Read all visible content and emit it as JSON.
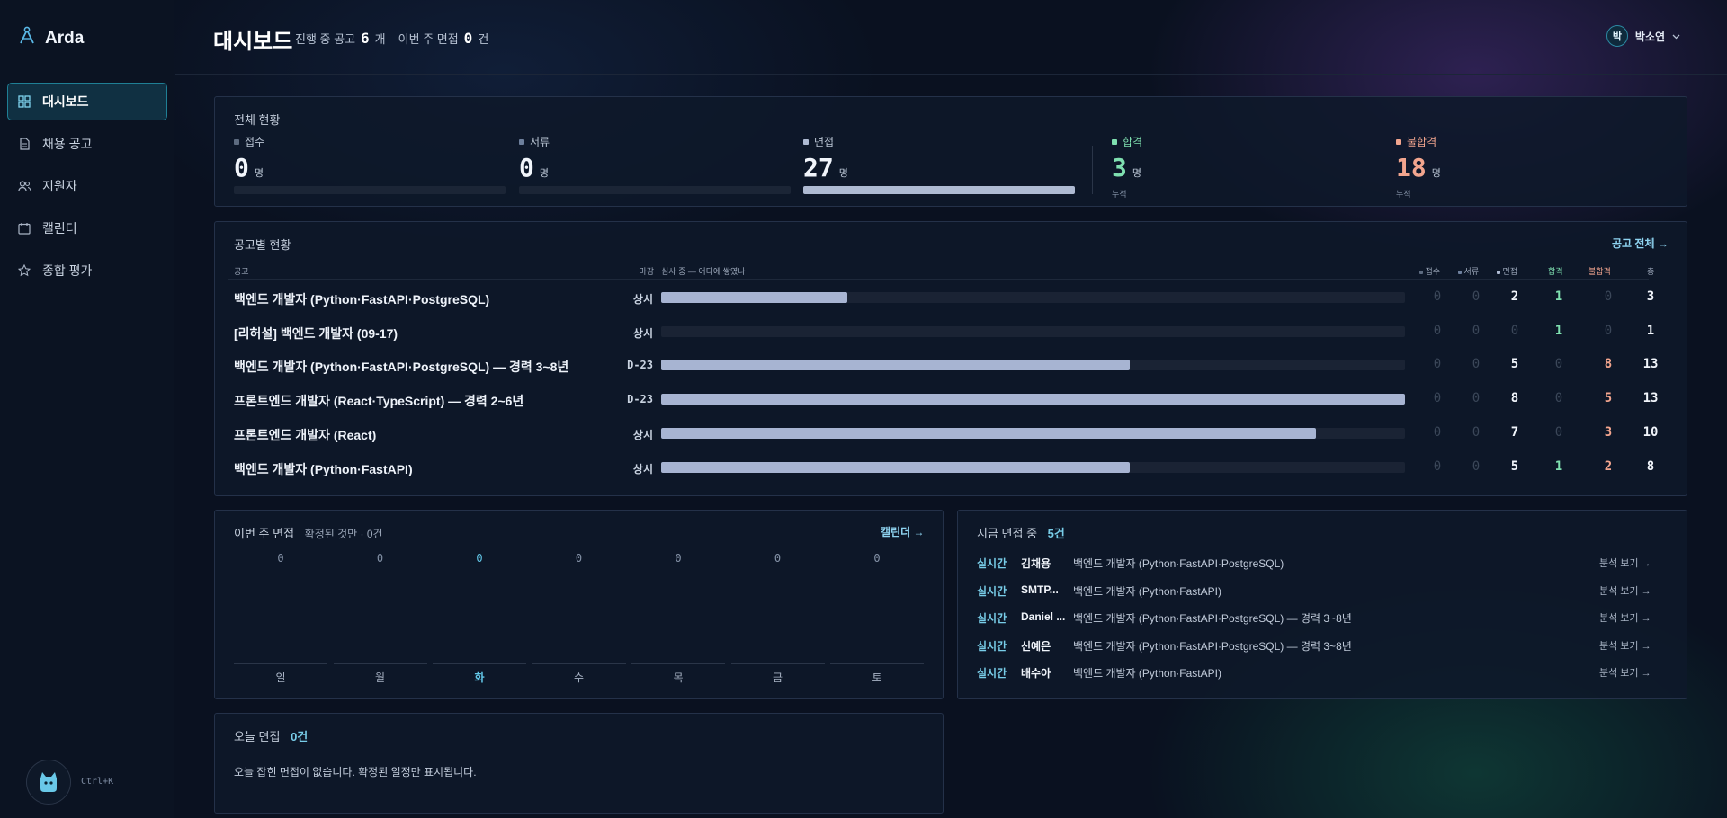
{
  "app": {
    "name": "Arda"
  },
  "sidebar": {
    "items": [
      {
        "label": "대시보드",
        "icon": "dashboard-icon"
      },
      {
        "label": "채용 공고",
        "icon": "document-icon"
      },
      {
        "label": "지원자",
        "icon": "users-icon"
      },
      {
        "label": "캘린더",
        "icon": "calendar-icon"
      },
      {
        "label": "종합 평가",
        "icon": "star-icon"
      }
    ],
    "shortcut": "Ctrl+K"
  },
  "header": {
    "title": "대시보드",
    "open_postings_label": "진행 중 공고",
    "open_postings_count": "6",
    "open_postings_unit": "개",
    "week_interviews_label": "이번 주 면접",
    "week_interviews_count": "0",
    "week_interviews_unit": "건",
    "user_initial": "박",
    "user_name": "박소연"
  },
  "summary": {
    "title": "전체 현황",
    "unit": "명",
    "note": "누적",
    "items": [
      {
        "label": "접수",
        "value": "0",
        "fill": 0.0,
        "color": "#5d6b80"
      },
      {
        "label": "서류",
        "value": "0",
        "fill": 0.0,
        "color": "#6d7f9c"
      },
      {
        "label": "면접",
        "value": "27",
        "fill": 1.0,
        "color": "#aebad2"
      },
      {
        "label": "합격",
        "value": "3",
        "color": "#7fe0b0"
      },
      {
        "label": "불합격",
        "value": "18",
        "color": "#f2a58e"
      }
    ]
  },
  "jobs": {
    "title": "공고별 현황",
    "all_link": "공고 전체 →",
    "columns": {
      "job": "공고",
      "deadline": "마감",
      "progress": "심사 중 — 어디에 쌓였나",
      "applied": "접수",
      "document": "서류",
      "interview": "면접",
      "pass": "합격",
      "fail": "불합격",
      "total": "총"
    },
    "rows": [
      {
        "name": "백엔드 개발자 (Python·FastAPI·PostgreSQL)",
        "deadline": "상시",
        "progress": 0.25,
        "applied": "0",
        "document": "0",
        "interview": "2",
        "pass": "1",
        "fail": "0",
        "total": "3"
      },
      {
        "name": "[리허설] 백엔드 개발자 (09-17)",
        "deadline": "상시",
        "progress": 0.0,
        "applied": "0",
        "document": "0",
        "interview": "0",
        "pass": "1",
        "fail": "0",
        "total": "1"
      },
      {
        "name": "백엔드 개발자 (Python·FastAPI·PostgreSQL) — 경력 3~8년",
        "deadline": "D-23",
        "progress": 0.63,
        "applied": "0",
        "document": "0",
        "interview": "5",
        "pass": "0",
        "fail": "8",
        "total": "13"
      },
      {
        "name": "프론트엔드 개발자 (React·TypeScript) — 경력 2~6년",
        "deadline": "D-23",
        "progress": 1.0,
        "applied": "0",
        "document": "0",
        "interview": "8",
        "pass": "0",
        "fail": "5",
        "total": "13"
      },
      {
        "name": "프론트엔드 개발자 (React)",
        "deadline": "상시",
        "progress": 0.88,
        "applied": "0",
        "document": "0",
        "interview": "7",
        "pass": "0",
        "fail": "3",
        "total": "10"
      },
      {
        "name": "백엔드 개발자 (Python·FastAPI)",
        "deadline": "상시",
        "progress": 0.63,
        "applied": "0",
        "document": "0",
        "interview": "5",
        "pass": "1",
        "fail": "2",
        "total": "8"
      }
    ]
  },
  "week": {
    "title": "이번 주 면접",
    "subtitle": "확정된 것만 · 0건",
    "calendar_link": "캘린더 →",
    "days": [
      {
        "label": "일",
        "value": "0"
      },
      {
        "label": "월",
        "value": "0"
      },
      {
        "label": "화",
        "value": "0",
        "today": true
      },
      {
        "label": "수",
        "value": "0"
      },
      {
        "label": "목",
        "value": "0"
      },
      {
        "label": "금",
        "value": "0"
      },
      {
        "label": "토",
        "value": "0"
      }
    ]
  },
  "live": {
    "title": "지금 면접 중",
    "count": "5건",
    "rows": [
      {
        "tag": "실시간",
        "name": "김채용",
        "job": "백엔드 개발자 (Python·FastAPI·PostgreSQL)",
        "link": "분석 보기 →"
      },
      {
        "tag": "실시간",
        "name": "SMTP...",
        "job": "백엔드 개발자 (Python·FastAPI)",
        "link": "분석 보기 →"
      },
      {
        "tag": "실시간",
        "name": "Daniel ...",
        "job": "백엔드 개발자 (Python·FastAPI·PostgreSQL) — 경력 3~8년",
        "link": "분석 보기 →"
      },
      {
        "tag": "실시간",
        "name": "신예은",
        "job": "백엔드 개발자 (Python·FastAPI·PostgreSQL) — 경력 3~8년",
        "link": "분석 보기 →"
      },
      {
        "tag": "실시간",
        "name": "배수아",
        "job": "백엔드 개발자 (Python·FastAPI)",
        "link": "분석 보기 →"
      }
    ]
  },
  "today": {
    "title": "오늘 면접",
    "count": "0건",
    "empty_message": "오늘 잡힌 면접이 없습니다. 확정된 일정만 표시됩니다."
  }
}
